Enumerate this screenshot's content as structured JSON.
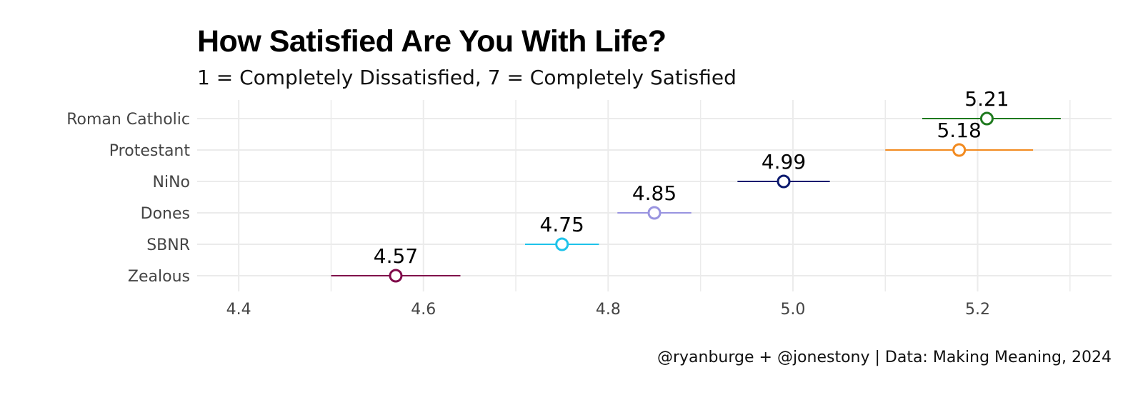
{
  "chart_data": {
    "type": "dot-errorbar",
    "title": "How Satisfied Are You With Life?",
    "subtitle": "1 = Completely Dissatisfied, 7 = Completely Satisfied",
    "caption": "@ryanburge + @jonestony | Data: Making Meaning, 2024",
    "xlim": [
      4.355,
      5.345
    ],
    "xticks": [
      4.4,
      4.6,
      4.8,
      5.0,
      5.2
    ],
    "xtick_labels": [
      "4.4",
      "4.6",
      "4.8",
      "5.0",
      "5.2"
    ],
    "xlabel": "",
    "ylabel": "",
    "grid": true,
    "categories": [
      "Roman Catholic",
      "Protestant",
      "NiNo",
      "Dones",
      "SBNR",
      "Zealous"
    ],
    "series": [
      {
        "name": "Roman Catholic",
        "value": 5.21,
        "label": "5.21",
        "lower": 5.14,
        "upper": 5.29,
        "color": "#1f7a1f"
      },
      {
        "name": "Protestant",
        "value": 5.18,
        "label": "5.18",
        "lower": 5.1,
        "upper": 5.26,
        "color": "#f28a1f"
      },
      {
        "name": "NiNo",
        "value": 4.99,
        "label": "4.99",
        "lower": 4.94,
        "upper": 5.04,
        "color": "#0c1a6e"
      },
      {
        "name": "Dones",
        "value": 4.85,
        "label": "4.85",
        "lower": 4.81,
        "upper": 4.89,
        "color": "#9994e0"
      },
      {
        "name": "SBNR",
        "value": 4.75,
        "label": "4.75",
        "lower": 4.71,
        "upper": 4.79,
        "color": "#1ec3ea"
      },
      {
        "name": "Zealous",
        "value": 4.57,
        "label": "4.57",
        "lower": 4.5,
        "upper": 4.64,
        "color": "#800a4a"
      }
    ]
  }
}
